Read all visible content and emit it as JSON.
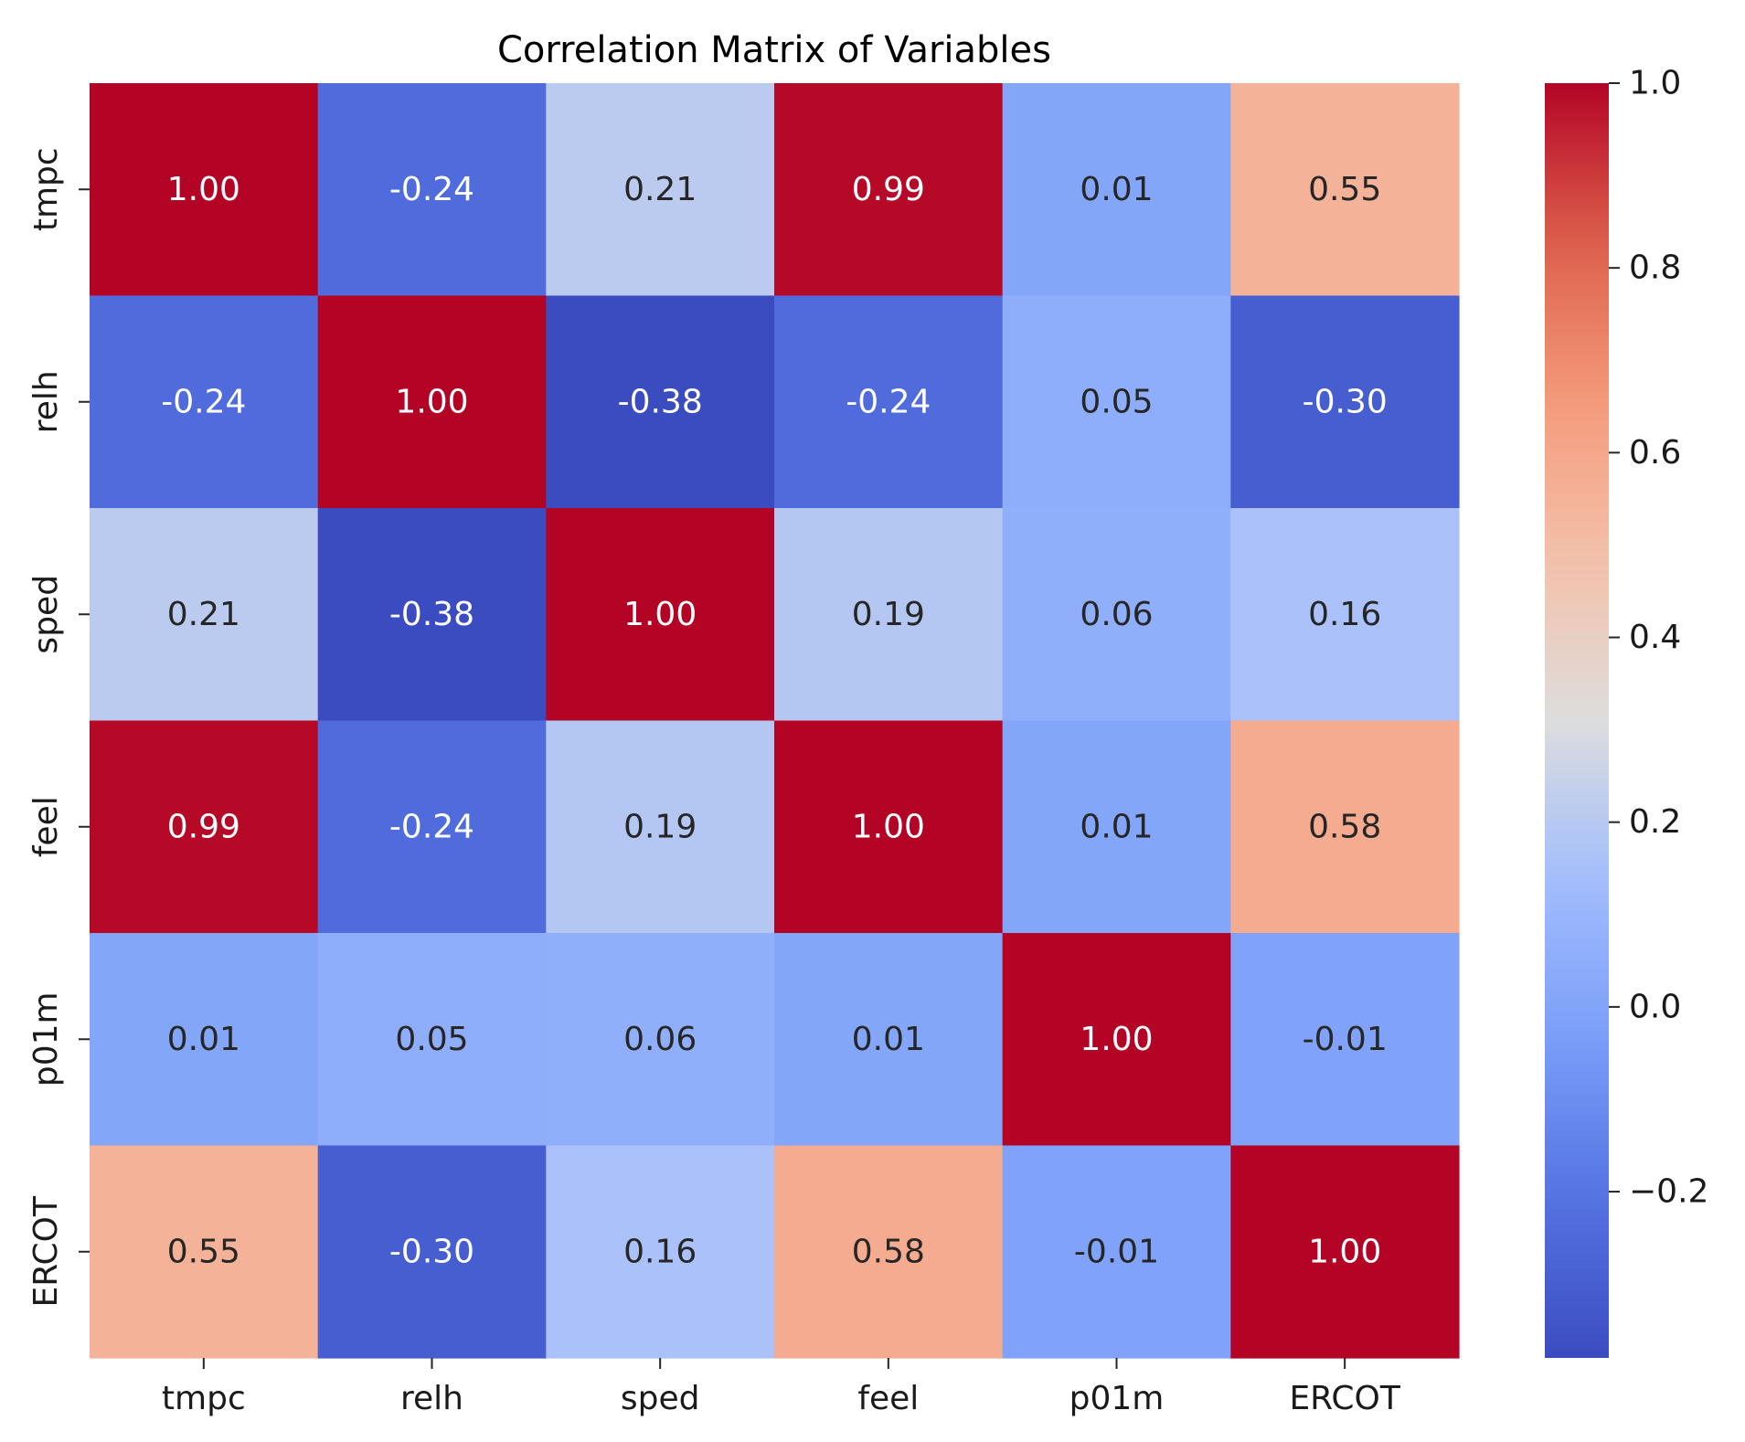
{
  "chart_data": {
    "type": "heatmap",
    "title": "Correlation Matrix of Variables",
    "xlabel": "",
    "ylabel": "",
    "x_categories": [
      "tmpc",
      "relh",
      "sped",
      "feel",
      "p01m",
      "ERCOT"
    ],
    "y_categories": [
      "tmpc",
      "relh",
      "sped",
      "feel",
      "p01m",
      "ERCOT"
    ],
    "values": [
      [
        1.0,
        -0.24,
        0.21,
        0.99,
        0.01,
        0.55
      ],
      [
        -0.24,
        1.0,
        -0.38,
        -0.24,
        0.05,
        -0.3
      ],
      [
        0.21,
        -0.38,
        1.0,
        0.19,
        0.06,
        0.16
      ],
      [
        0.99,
        -0.24,
        0.19,
        1.0,
        0.01,
        0.58
      ],
      [
        0.01,
        0.05,
        0.06,
        0.01,
        1.0,
        -0.01
      ],
      [
        0.55,
        -0.3,
        0.16,
        0.58,
        -0.01,
        1.0
      ]
    ],
    "value_format": "2 decimals",
    "colormap": "coolwarm",
    "colorbar": {
      "range": [
        -0.38,
        1.0
      ],
      "ticks": [
        -0.2,
        0.0,
        0.2,
        0.4,
        0.6,
        0.8,
        1.0
      ],
      "tick_labels": [
        "−0.2",
        "0.0",
        "0.2",
        "0.4",
        "0.6",
        "0.8",
        "1.0"
      ]
    },
    "grid": false,
    "legend": "colorbar right"
  }
}
